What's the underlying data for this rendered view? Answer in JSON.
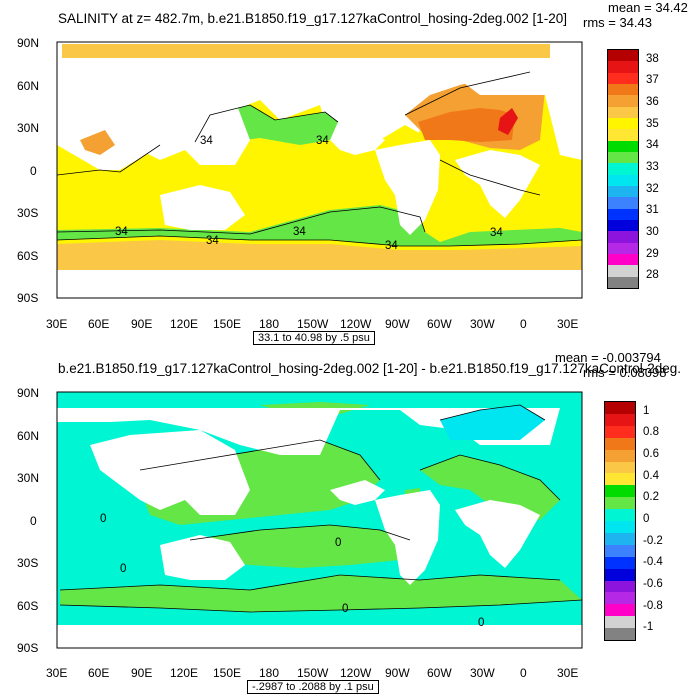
{
  "panel1": {
    "title": "SALINITY at z= 482.7m, b.e21.B1850.f19_g17.127kaControl_hosing-2deg.002 [1-20]",
    "mean_label": "mean = 34.42",
    "rms_label": "rms = 34.43",
    "range_note": "33.1 to 40.98 by .5 psu",
    "contour_label": "34",
    "colorbar": {
      "labels": [
        "38",
        "37",
        "36",
        "35",
        "34",
        "33",
        "32",
        "31",
        "30",
        "29",
        "28"
      ],
      "colors": [
        "#b40000",
        "#e61414",
        "#ff2d1e",
        "#f07818",
        "#f5a032",
        "#fac846",
        "#fff500",
        "#ffe632",
        "#00dc00",
        "#64e646",
        "#00f5d2",
        "#00e6f0",
        "#1eb4f0",
        "#3c82ff",
        "#0032ff",
        "#0000dc",
        "#8c14dc",
        "#b428e6",
        "#ff00c8",
        "#d2d2d2",
        "#828282"
      ]
    }
  },
  "panel2": {
    "title": "b.e21.B1850.f19_g17.127kaControl_hosing-2deg.002 [1-20] - b.e21.B1850.f19_g17.127kaControl-2deg.",
    "mean_label": "mean = -0.003794",
    "rms_label": "rms = 0.08098",
    "range_note": "-.2987 to .2088 by .1 psu",
    "contour_label": "0",
    "colorbar": {
      "labels": [
        "1",
        "0.8",
        "0.6",
        "0.4",
        "0.2",
        "0",
        "-0.2",
        "-0.4",
        "-0.6",
        "-0.8",
        "-1"
      ],
      "colors": [
        "#b40000",
        "#e61414",
        "#ff2d1e",
        "#f07818",
        "#f5a032",
        "#fac846",
        "#ffe632",
        "#00dc00",
        "#64e646",
        "#00f5d2",
        "#00e6f0",
        "#1eb4f0",
        "#3c82ff",
        "#0032ff",
        "#0000dc",
        "#8c14dc",
        "#b428e6",
        "#ff00c8",
        "#d2d2d2",
        "#828282"
      ]
    }
  },
  "axes": {
    "lat_labels": [
      "90N",
      "60N",
      "30N",
      "0",
      "30S",
      "60S",
      "90S"
    ],
    "lon_labels": [
      "30E",
      "60E",
      "90E",
      "120E",
      "150E",
      "180",
      "150W",
      "120W",
      "90W",
      "60W",
      "30W",
      "0",
      "30E"
    ]
  },
  "colors": {
    "p1_base": "#fff500",
    "p1_green": "#64e646",
    "p1_orange": "#f5a032",
    "p1_dark_orange": "#f07818",
    "p1_red": "#e61414",
    "p1_light_orange": "#fac846",
    "p2_base": "#00f5d2",
    "p2_green": "#64e646",
    "p2_teal": "#00e6f0"
  }
}
